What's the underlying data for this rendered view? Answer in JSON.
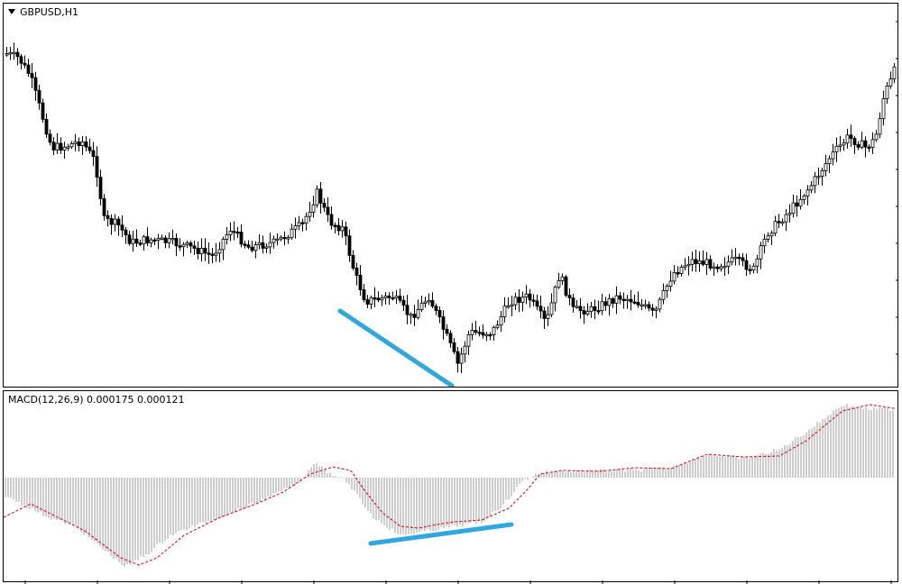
{
  "price_panel": {
    "label": "GBPUSD,H1",
    "menu_icon": "triangle-down-icon",
    "candle_color": "#000000",
    "trendline_color": "#2fa8df"
  },
  "macd_panel": {
    "label": "MACD(12,26,9) 0.000175 0.000121",
    "histogram_color": "#9e9e9e",
    "signal_color": "#d9141c",
    "trendline_color": "#2fa8df"
  }
}
